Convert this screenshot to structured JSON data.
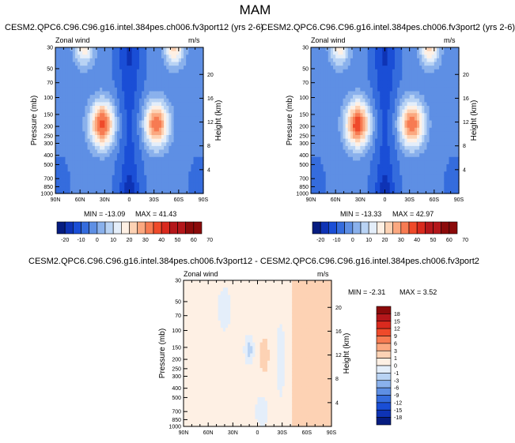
{
  "page_title": "MAM",
  "colors": {
    "plus_70": "#8b0a0a",
    "plus_50": "#b4161a",
    "plus_40": "#d92a1e",
    "plus_30": "#ef4a2a",
    "plus_20": "#f77b52",
    "plus_10": "#fba880",
    "plus_5": "#fdd2b4",
    "plus_0": "#fef0e4",
    "minus_0": "#e4eefa",
    "minus_5": "#b9d3f4",
    "minus_10": "#8ab1ec",
    "minus_15": "#5e8fe4",
    "minus_20": "#356cdd",
    "minus_25": "#1a4ed6",
    "minus_30": "#0e33b5",
    "minus_40": "#061c80"
  },
  "chart_data": [
    {
      "type": "contour",
      "id": "case1",
      "title": "CESM2.QPC6.C96.C96.g16.intel.384pes.ch006.fv3port12 (yrs 2-6)",
      "variable_label": "Zonal wind",
      "units_label": "m/s",
      "ylabel": "Pressure (mb)",
      "ylabel_right": "Height (km)",
      "x_ticks": [
        "90N",
        "60N",
        "30N",
        "0",
        "30S",
        "60S",
        "90S"
      ],
      "x_range": [
        90,
        -90
      ],
      "y_ticks": [
        "30",
        "50",
        "70",
        "100",
        "150",
        "200",
        "250",
        "300",
        "400",
        "500",
        "700",
        "850",
        "1000"
      ],
      "y_values": [
        30,
        50,
        70,
        100,
        150,
        200,
        250,
        300,
        400,
        500,
        700,
        850,
        1000
      ],
      "y_range": [
        30,
        1000
      ],
      "height_ticks": [
        "20",
        "16",
        "12",
        "8",
        "4"
      ],
      "height_values": [
        20,
        16,
        12,
        8,
        4
      ],
      "min_label": "MIN = -13.09",
      "max_label": "MAX = 41.43",
      "min": -13.09,
      "max": 41.43,
      "jets": [
        {
          "lat": 33,
          "p": 190,
          "peak": 41.4
        },
        {
          "lat": -33,
          "p": 190,
          "peak": 38.0
        }
      ],
      "colorbar": {
        "labels": [
          "-20",
          "-10",
          "0",
          "10",
          "20",
          "30",
          "40",
          "50",
          "60",
          "70"
        ],
        "levels": [
          -20,
          -15,
          -10,
          -5,
          0,
          5,
          10,
          15,
          20,
          25,
          30,
          35,
          40,
          45,
          50,
          55,
          60,
          65,
          70,
          75
        ]
      }
    },
    {
      "type": "contour",
      "id": "case2",
      "title": "CESM2.QPC6.C96.C96.g16.intel.384pes.ch006.fv3port2 (yrs 2-6)",
      "variable_label": "Zonal wind",
      "units_label": "m/s",
      "ylabel": "Pressure (mb)",
      "ylabel_right": "Height (km)",
      "x_ticks": [
        "90N",
        "60N",
        "30N",
        "0",
        "30S",
        "60S",
        "90S"
      ],
      "x_range": [
        90,
        -90
      ],
      "y_ticks": [
        "30",
        "50",
        "70",
        "100",
        "150",
        "200",
        "250",
        "300",
        "400",
        "500",
        "700",
        "850",
        "1000"
      ],
      "y_values": [
        30,
        50,
        70,
        100,
        150,
        200,
        250,
        300,
        400,
        500,
        700,
        850,
        1000
      ],
      "y_range": [
        30,
        1000
      ],
      "height_ticks": [
        "20",
        "16",
        "12",
        "8",
        "4"
      ],
      "height_values": [
        20,
        16,
        12,
        8,
        4
      ],
      "min_label": "MIN = -13.33",
      "max_label": "MAX = 42.97",
      "min": -13.33,
      "max": 42.97,
      "jets": [
        {
          "lat": 33,
          "p": 190,
          "peak": 43.0
        },
        {
          "lat": -33,
          "p": 190,
          "peak": 39.0
        }
      ],
      "colorbar": {
        "labels": [
          "-20",
          "-10",
          "0",
          "10",
          "20",
          "30",
          "40",
          "50",
          "60",
          "70"
        ],
        "levels": [
          -20,
          -15,
          -10,
          -5,
          0,
          5,
          10,
          15,
          20,
          25,
          30,
          35,
          40,
          45,
          50,
          55,
          60,
          65,
          70,
          75
        ]
      }
    },
    {
      "type": "contour",
      "id": "diff",
      "title": "CESM2.QPC6.C96.C96.g16.intel.384pes.ch006.fv3port12 - CESM2.QPC6.C96.C96.g16.intel.384pes.ch006.fv3port2",
      "variable_label": "Zonal wind",
      "units_label": "m/s",
      "ylabel": "Pressure (mb)",
      "ylabel_right": "Height (km)",
      "x_ticks": [
        "90N",
        "60N",
        "30N",
        "0",
        "30S",
        "60S",
        "90S"
      ],
      "x_range": [
        90,
        -90
      ],
      "y_ticks": [
        "30",
        "50",
        "70",
        "100",
        "150",
        "200",
        "250",
        "300",
        "400",
        "500",
        "700",
        "850",
        "1000"
      ],
      "y_values": [
        30,
        50,
        70,
        100,
        150,
        200,
        250,
        300,
        400,
        500,
        700,
        850,
        1000
      ],
      "y_range": [
        30,
        1000
      ],
      "height_ticks": [
        "20",
        "16",
        "12",
        "8",
        "4"
      ],
      "height_values": [
        20,
        16,
        12,
        8,
        4
      ],
      "min_label": "MIN = -2.31",
      "max_label": "MAX =   3.52",
      "min": -2.31,
      "max": 3.52,
      "colorbar": {
        "labels": [
          "18",
          "15",
          "12",
          "9",
          "6",
          "3",
          "1",
          "0",
          "-1",
          "-3",
          "-6",
          "-9",
          "-12",
          "-15",
          "-18"
        ],
        "levels": [
          18,
          15,
          12,
          9,
          6,
          3,
          1,
          0,
          -1,
          -3,
          -6,
          -9,
          -12,
          -15,
          -18
        ]
      }
    }
  ]
}
